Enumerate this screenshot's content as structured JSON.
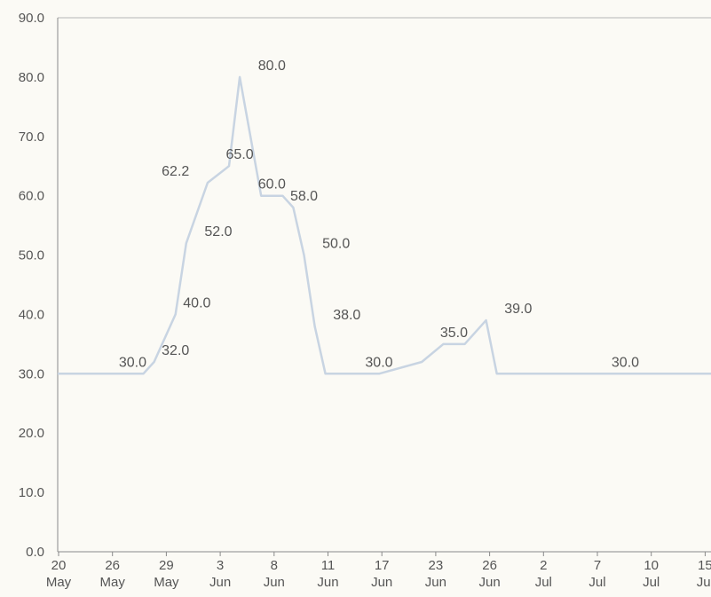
{
  "chart_data": {
    "type": "line",
    "title": "",
    "xlabel": "",
    "ylabel": "",
    "ylim": [
      0,
      90
    ],
    "y_ticks": [
      "0.0",
      "10.0",
      "20.0",
      "30.0",
      "40.0",
      "50.0",
      "60.0",
      "70.0",
      "80.0",
      "90.0"
    ],
    "x_ticks": [
      {
        "day": "20",
        "month": "May"
      },
      {
        "day": "26",
        "month": "May"
      },
      {
        "day": "29",
        "month": "May"
      },
      {
        "day": "3",
        "month": "Jun"
      },
      {
        "day": "8",
        "month": "Jun"
      },
      {
        "day": "11",
        "month": "Jun"
      },
      {
        "day": "17",
        "month": "Jun"
      },
      {
        "day": "23",
        "month": "Jun"
      },
      {
        "day": "26",
        "month": "Jun"
      },
      {
        "day": "2",
        "month": "Jul"
      },
      {
        "day": "7",
        "month": "Jul"
      },
      {
        "day": "10",
        "month": "Jul"
      },
      {
        "day": "15",
        "month": "Jul"
      }
    ],
    "grid": false,
    "series": [
      {
        "color": "#c8d4e2",
        "points": [
          {
            "x": "18 May",
            "y": 30.0
          },
          {
            "x": "26 May",
            "y": 30.0
          },
          {
            "x": "27 May",
            "y": 32.0
          },
          {
            "x": "29 May",
            "y": 40.0
          },
          {
            "x": "30 May",
            "y": 52.0
          },
          {
            "x": "1 Jun",
            "y": 62.2
          },
          {
            "x": "3 Jun",
            "y": 65.0
          },
          {
            "x": "4 Jun",
            "y": 80.0
          },
          {
            "x": "6 Jun",
            "y": 60.0
          },
          {
            "x": "8 Jun",
            "y": 60.0
          },
          {
            "x": "9 Jun",
            "y": 58.0
          },
          {
            "x": "10 Jun",
            "y": 50.0
          },
          {
            "x": "11 Jun",
            "y": 38.0
          },
          {
            "x": "12 Jun",
            "y": 30.0
          },
          {
            "x": "17 Jun",
            "y": 30.0
          },
          {
            "x": "21 Jun",
            "y": 32.0
          },
          {
            "x": "23 Jun",
            "y": 35.0
          },
          {
            "x": "25 Jun",
            "y": 35.0
          },
          {
            "x": "27 Jun",
            "y": 39.0
          },
          {
            "x": "28 Jun",
            "y": 30.0
          },
          {
            "x": "18 Jul",
            "y": 30.0
          }
        ]
      }
    ],
    "annotations": [
      {
        "x": "25 May",
        "y": 30.0,
        "text": "30.0"
      },
      {
        "x": "29 May",
        "y": 32.0,
        "text": "32.0"
      },
      {
        "x": "31 May",
        "y": 40.0,
        "text": "40.0"
      },
      {
        "x": "29 May",
        "y": 62.2,
        "text": "62.2"
      },
      {
        "x": "2 Jun",
        "y": 52.0,
        "text": "52.0"
      },
      {
        "x": "4 Jun",
        "y": 65.0,
        "text": "65.0"
      },
      {
        "x": "7 Jun",
        "y": 80.0,
        "text": "80.0"
      },
      {
        "x": "7 Jun",
        "y": 60.0,
        "text": "60.0"
      },
      {
        "x": "10 Jun",
        "y": 58.0,
        "text": "58.0"
      },
      {
        "x": "13 Jun",
        "y": 50.0,
        "text": "50.0"
      },
      {
        "x": "14 Jun",
        "y": 38.0,
        "text": "38.0"
      },
      {
        "x": "17 Jun",
        "y": 30.0,
        "text": "30.0"
      },
      {
        "x": "24 Jun",
        "y": 35.0,
        "text": "35.0"
      },
      {
        "x": "30 Jun",
        "y": 39.0,
        "text": "39.0"
      },
      {
        "x": "10 Jul",
        "y": 30.0,
        "text": "30.0"
      }
    ]
  }
}
